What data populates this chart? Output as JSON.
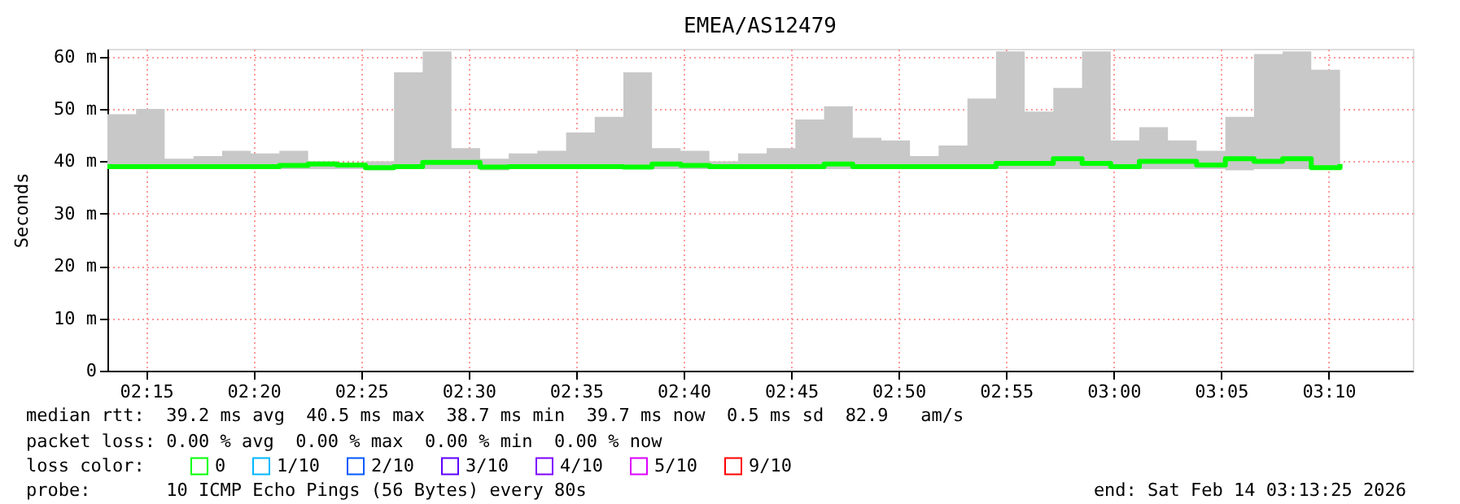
{
  "chart_data": {
    "type": "step",
    "title": "EMEA/AS12479",
    "ylabel": "Seconds",
    "x": [
      2.22,
      2.2422,
      2.2644,
      2.2867,
      2.3089,
      2.3311,
      2.3533,
      2.3756,
      2.3978,
      2.42,
      2.4422,
      2.4644,
      2.4867,
      2.5089,
      2.5311,
      2.5533,
      2.5756,
      2.5978,
      2.62,
      2.6422,
      2.6644,
      2.6867,
      2.7089,
      2.7311,
      2.7533,
      2.7756,
      2.7978,
      2.82,
      2.8422,
      2.8644,
      2.8867,
      2.9089,
      2.9311,
      2.9533,
      2.9756,
      2.9978,
      3.02,
      3.0422,
      3.0644,
      3.0867,
      3.1089,
      3.1311,
      3.1533,
      3.1756
    ],
    "series": [
      {
        "name": "0",
        "color": "#00ff00",
        "values": [
          39.0,
          39.0,
          39.0,
          39.0,
          39.0,
          39.0,
          39.2,
          39.5,
          39.3,
          38.8,
          39.0,
          39.8,
          39.8,
          38.9,
          39.0,
          39.0,
          39.0,
          39.0,
          38.9,
          39.5,
          39.2,
          39.0,
          39.0,
          39.0,
          39.0,
          39.5,
          39.0,
          39.0,
          39.0,
          39.0,
          39.0,
          39.6,
          39.6,
          40.5,
          39.6,
          39.0,
          40.0,
          40.0,
          39.3,
          40.5,
          40.0,
          40.5,
          38.8,
          39.5
        ],
        "lower": [
          38.5,
          38.5,
          38.5,
          38.5,
          38.5,
          38.5,
          38.5,
          38.5,
          38.5,
          38.3,
          38.5,
          38.5,
          38.5,
          38.3,
          38.5,
          38.5,
          38.5,
          38.5,
          38.5,
          38.5,
          38.5,
          38.5,
          38.5,
          38.5,
          38.5,
          38.5,
          38.5,
          38.5,
          38.5,
          38.5,
          38.5,
          38.5,
          38.5,
          38.5,
          38.5,
          38.5,
          38.5,
          38.5,
          38.5,
          38.3,
          38.5,
          38.5,
          38.5,
          38.5
        ],
        "upper": [
          49.0,
          50.0,
          40.5,
          41.0,
          42.0,
          41.5,
          42.0,
          40.0,
          39.5,
          40.0,
          57.0,
          61.0,
          42.5,
          40.5,
          41.5,
          42.0,
          45.5,
          48.5,
          57.0,
          42.5,
          42.0,
          40.0,
          41.5,
          42.5,
          48.0,
          50.5,
          44.5,
          44.0,
          41.0,
          43.0,
          52.0,
          61.0,
          49.5,
          54.0,
          61.0,
          44.0,
          46.5,
          44.0,
          42.0,
          48.5,
          60.5,
          61.0,
          57.5,
          44.0
        ]
      },
      {
        "name": "1/10",
        "color": "#00b8ff",
        "values": [
          null,
          null,
          null,
          null,
          null,
          null,
          null,
          null,
          null,
          null,
          null,
          null,
          null,
          null,
          null,
          null,
          null,
          null,
          null,
          null,
          null,
          null,
          null,
          null,
          null,
          null,
          null,
          null,
          null,
          null,
          null,
          null,
          null,
          null,
          null,
          null,
          null,
          null,
          null,
          null,
          null,
          null,
          null,
          null
        ]
      },
      {
        "name": "2/10",
        "color": "#0059ff",
        "values": [
          null,
          null,
          null,
          null,
          null,
          null,
          null,
          null,
          null,
          null,
          null,
          null,
          null,
          null,
          null,
          null,
          null,
          null,
          null,
          null,
          null,
          null,
          null,
          null,
          null,
          null,
          null,
          null,
          null,
          null,
          null,
          null,
          null,
          null,
          null,
          null,
          null,
          null,
          null,
          null,
          null,
          null,
          null,
          null
        ]
      },
      {
        "name": "3/10",
        "color": "#5e00ff",
        "values": [
          null,
          null,
          null,
          null,
          null,
          null,
          null,
          null,
          null,
          null,
          null,
          null,
          null,
          null,
          null,
          null,
          null,
          null,
          null,
          null,
          null,
          null,
          null,
          null,
          null,
          null,
          null,
          null,
          null,
          null,
          null,
          null,
          null,
          null,
          null,
          null,
          null,
          null,
          null,
          null,
          null,
          null,
          null,
          null
        ]
      },
      {
        "name": "4/10",
        "color": "#7e00ff",
        "values": [
          null,
          null,
          null,
          null,
          null,
          null,
          null,
          null,
          null,
          null,
          null,
          null,
          null,
          null,
          null,
          null,
          null,
          null,
          null,
          null,
          null,
          null,
          null,
          null,
          null,
          null,
          null,
          null,
          null,
          null,
          null,
          null,
          null,
          null,
          null,
          null,
          null,
          null,
          null,
          null,
          null,
          null,
          null,
          null
        ]
      },
      {
        "name": "5/10",
        "color": "#dd00ff",
        "values": [
          null,
          null,
          null,
          null,
          null,
          null,
          null,
          null,
          null,
          null,
          null,
          null,
          null,
          null,
          null,
          null,
          null,
          null,
          null,
          null,
          null,
          null,
          null,
          null,
          null,
          null,
          null,
          null,
          null,
          null,
          null,
          null,
          null,
          null,
          null,
          null,
          null,
          null,
          null,
          null,
          null,
          null,
          null,
          null
        ]
      },
      {
        "name": "9/10",
        "color": "#ff0000",
        "values": [
          null,
          null,
          null,
          null,
          null,
          null,
          null,
          null,
          null,
          null,
          null,
          null,
          null,
          null,
          null,
          null,
          null,
          null,
          null,
          null,
          null,
          null,
          null,
          null,
          null,
          null,
          null,
          null,
          null,
          null,
          null,
          null,
          null,
          null,
          null,
          null,
          null,
          null,
          null,
          null,
          null,
          null,
          null,
          null
        ]
      }
    ],
    "xlim": [
      2.22,
      3.232
    ],
    "xticks": [
      {
        "value": 2.25,
        "label": "02:15"
      },
      {
        "value": 2.3333,
        "label": "02:20"
      },
      {
        "value": 2.4167,
        "label": "02:25"
      },
      {
        "value": 2.5,
        "label": "02:30"
      },
      {
        "value": 2.5833,
        "label": "02:35"
      },
      {
        "value": 2.6667,
        "label": "02:40"
      },
      {
        "value": 2.75,
        "label": "02:45"
      },
      {
        "value": 2.8333,
        "label": "02:50"
      },
      {
        "value": 2.9167,
        "label": "02:55"
      },
      {
        "value": 3.0,
        "label": "03:00"
      },
      {
        "value": 3.0833,
        "label": "03:05"
      },
      {
        "value": 3.1667,
        "label": "03:10"
      }
    ],
    "ylim": [
      0,
      61.5
    ],
    "yticks": [
      0,
      {
        "value": 10,
        "label": "10 m"
      },
      {
        "value": 20,
        "label": "20 m"
      },
      {
        "value": 30,
        "label": "30 m"
      },
      {
        "value": 40,
        "label": "40 m"
      },
      {
        "value": 50,
        "label": "50 m"
      },
      {
        "value": 60,
        "label": "60 m"
      }
    ],
    "grid": true,
    "legend": "bottom",
    "legend_title": "loss color:",
    "annotations": [
      "median rtt:  39.2 ms avg  40.5 ms max  38.7 ms min  39.7 ms now  0.5 ms sd  82.9   am/s",
      "packet loss: 0.00 % avg  0.00 % max  0.00 % min  0.00 % now",
      "probe:       10 ICMP Echo Pings (56 Bytes) every 80s",
      "end: Sat Feb 14 03:13:25 2026"
    ]
  }
}
